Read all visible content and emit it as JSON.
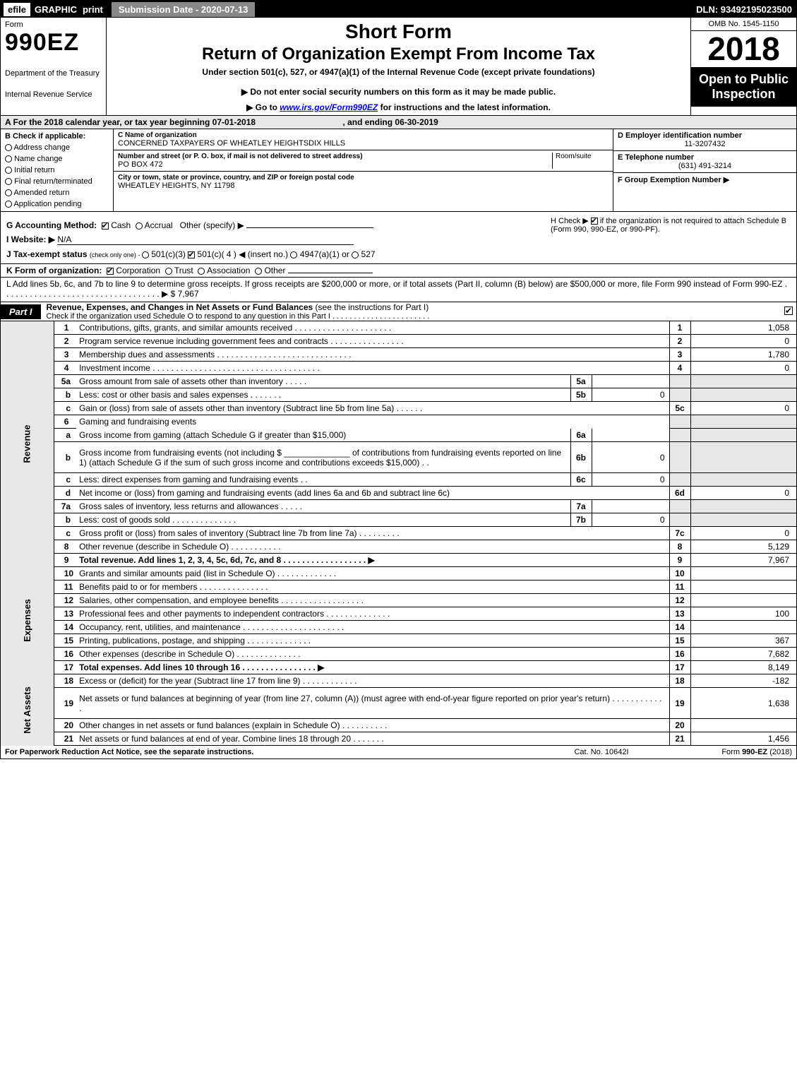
{
  "topbar": {
    "efile": "efile",
    "graphic": "GRAPHIC",
    "print": "print",
    "submission_label": "Submission Date - 2020-07-13",
    "dln": "DLN: 93492195023500"
  },
  "header": {
    "form_label": "Form",
    "form_code": "990EZ",
    "dept": "Department of the Treasury",
    "irs": "Internal Revenue Service",
    "short": "Short Form",
    "ret_title": "Return of Organization Exempt From Income Tax",
    "undersec": "Under section 501(c), 527, or 4947(a)(1) of the Internal Revenue Code (except private foundations)",
    "note": "▶ Do not enter social security numbers on this form as it may be made public.",
    "goto_prefix": "▶ Go to ",
    "goto_link": "www.irs.gov/Form990EZ",
    "goto_suffix": " for instructions and the latest information.",
    "omb": "OMB No. 1545-1150",
    "year": "2018",
    "open": "Open to Public Inspection"
  },
  "period": {
    "text_a": "A  For the 2018 calendar year, or tax year beginning ",
    "begin": "07-01-2018",
    "mid": " , and ending ",
    "end": "06-30-2019"
  },
  "sectionB": {
    "hdr": "B  Check if applicable:",
    "items": [
      "Address change",
      "Name change",
      "Initial return",
      "Final return/terminated",
      "Amended return",
      "Application pending"
    ]
  },
  "sectionC": {
    "name_label": "C Name of organization",
    "name": "CONCERNED TAXPAYERS OF WHEATLEY HEIGHTSDIX HILLS",
    "addr_label": "Number and street (or P. O. box, if mail is not delivered to street address)",
    "room_label": "Room/suite",
    "addr": "PO BOX 472",
    "city_label": "City or town, state or province, country, and ZIP or foreign postal code",
    "city": "WHEATLEY HEIGHTS, NY  11798"
  },
  "sectionD": {
    "d_label": "D Employer identification number",
    "d_val": "11-3207432",
    "e_label": "E Telephone number",
    "e_val": "(631) 491-3214",
    "f_label": "F Group Exemption Number ▶"
  },
  "mid": {
    "G": "G Accounting Method:",
    "G_cash": "Cash",
    "G_accrual": "Accrual",
    "G_other": "Other (specify) ▶",
    "H_prefix": "H  Check ▶ ",
    "H_text": " if the organization is not required to attach Schedule B (Form 990, 990-EZ, or 990-PF).",
    "I": "I Website: ▶",
    "I_val": "N/A",
    "J_prefix": "J Tax-exempt status ",
    "J_small": "(check only one) - ",
    "J_a": " 501(c)(3) ",
    "J_b": " 501(c)( 4 ) ◀ (insert no.) ",
    "J_c": " 4947(a)(1) or ",
    "J_d": " 527",
    "K": "K Form of organization: ",
    "K_corp": "Corporation",
    "K_trust": "Trust",
    "K_assoc": "Association",
    "K_other": "Other",
    "L_text": "L Add lines 5b, 6c, and 7b to line 9 to determine gross receipts. If gross receipts are $200,000 or more, or if total assets (Part II, column (B) below) are $500,000 or more, file Form 990 instead of Form 990-EZ . . . . . . . . . . . . . . . . . . . . . . . . . . . . . . . . . . ▶ $ ",
    "L_val": "7,967"
  },
  "part1": {
    "tab": "Part I",
    "title": "Revenue, Expenses, and Changes in Net Assets or Fund Balances",
    "title_paren": " (see the instructions for Part I)",
    "sub": "Check if the organization used Schedule O to respond to any question in this Part I . . . . . . . . . . . . . . . . . . . . . . .",
    "checked": true
  },
  "sideLabels": {
    "revenue": "Revenue",
    "expenses": "Expenses",
    "netassets": "Net Assets"
  },
  "lines": [
    {
      "sec": "rev",
      "n": "1",
      "desc": "Contributions, gifts, grants, and similar amounts received . . . . . . . . . . . . . . . . . . . . .",
      "col": "1",
      "val": "1,058"
    },
    {
      "sec": "rev",
      "n": "2",
      "desc": "Program service revenue including government fees and contracts . . . . . . . . . . . . . . . .",
      "col": "2",
      "val": "0"
    },
    {
      "sec": "rev",
      "n": "3",
      "desc": "Membership dues and assessments . . . . . . . . . . . . . . . . . . . . . . . . . . . . .",
      "col": "3",
      "val": "1,780"
    },
    {
      "sec": "rev",
      "n": "4",
      "desc": "Investment income . . . . . . . . . . . . . . . . . . . . . . . . . . . . . . . . . . . .",
      "col": "4",
      "val": "0"
    },
    {
      "sec": "rev",
      "n": "5a",
      "desc": "Gross amount from sale of assets other than inventory . . . . .",
      "ibox": "5a",
      "ival": "",
      "shade": true
    },
    {
      "sec": "rev",
      "n": "b",
      "desc": "Less: cost or other basis and sales expenses . . . . . . .",
      "ibox": "5b",
      "ival": "0",
      "shade": true
    },
    {
      "sec": "rev",
      "n": "c",
      "desc": "Gain or (loss) from sale of assets other than inventory (Subtract line 5b from line 5a) . . . . . .",
      "col": "5c",
      "val": "0"
    },
    {
      "sec": "rev",
      "n": "6",
      "desc": "Gaming and fundraising events",
      "shade": true,
      "noborder": true
    },
    {
      "sec": "rev",
      "n": "a",
      "desc": "Gross income from gaming (attach Schedule G if greater than $15,000)",
      "ibox": "6a",
      "ival": "",
      "shade": true
    },
    {
      "sec": "rev",
      "n": "b",
      "desc": "Gross income from fundraising events (not including $ ______________ of contributions from fundraising events reported on line 1) (attach Schedule G if the sum of such gross income and contributions exceeds $15,000)   . .",
      "ibox": "6b",
      "ival": "0",
      "shade": true,
      "tall": true
    },
    {
      "sec": "rev",
      "n": "c",
      "desc": "Less: direct expenses from gaming and fundraising events    . .",
      "ibox": "6c",
      "ival": "0",
      "shade": true
    },
    {
      "sec": "rev",
      "n": "d",
      "desc": "Net income or (loss) from gaming and fundraising events (add lines 6a and 6b and subtract line 6c)",
      "col": "6d",
      "val": "0"
    },
    {
      "sec": "rev",
      "n": "7a",
      "desc": "Gross sales of inventory, less returns and allowances . . . . .",
      "ibox": "7a",
      "ival": "",
      "shade": true
    },
    {
      "sec": "rev",
      "n": "b",
      "desc": "Less: cost of goods sold     . . . . . . . . . . . . . .",
      "ibox": "7b",
      "ival": "0",
      "shade": true
    },
    {
      "sec": "rev",
      "n": "c",
      "desc": "Gross profit or (loss) from sales of inventory (Subtract line 7b from line 7a) . . . . . . . . .",
      "col": "7c",
      "val": "0"
    },
    {
      "sec": "rev",
      "n": "8",
      "desc": "Other revenue (describe in Schedule O)               . . . . . . . . . . .",
      "col": "8",
      "val": "5,129"
    },
    {
      "sec": "rev",
      "n": "9",
      "desc": "Total revenue. Add lines 1, 2, 3, 4, 5c, 6d, 7c, and 8 . . . . . . . . . . . . . . . . . . ▶",
      "col": "9",
      "val": "7,967",
      "bold": true
    },
    {
      "sec": "exp",
      "n": "10",
      "desc": "Grants and similar amounts paid (list in Schedule O)       . . . . . . . . . . . . .",
      "col": "10",
      "val": ""
    },
    {
      "sec": "exp",
      "n": "11",
      "desc": "Benefits paid to or for members             . . . . . . . . . . . . . . .",
      "col": "11",
      "val": ""
    },
    {
      "sec": "exp",
      "n": "12",
      "desc": "Salaries, other compensation, and employee benefits . . . . . . . . . . . . . . . . . .",
      "col": "12",
      "val": ""
    },
    {
      "sec": "exp",
      "n": "13",
      "desc": "Professional fees and other payments to independent contractors . . . . . . . . . . . . . .",
      "col": "13",
      "val": "100"
    },
    {
      "sec": "exp",
      "n": "14",
      "desc": "Occupancy, rent, utilities, and maintenance . . . . . . . . . . . . . . . . . . . . . .",
      "col": "14",
      "val": ""
    },
    {
      "sec": "exp",
      "n": "15",
      "desc": "Printing, publications, postage, and shipping        . . . . . . . . . . . . . .",
      "col": "15",
      "val": "367"
    },
    {
      "sec": "exp",
      "n": "16",
      "desc": "Other expenses (describe in Schedule O)          . . . . . . . . . . . . . .",
      "col": "16",
      "val": "7,682"
    },
    {
      "sec": "exp",
      "n": "17",
      "desc": "Total expenses. Add lines 10 through 16      . . . . . . . . . . . . . . . . ▶",
      "col": "17",
      "val": "8,149",
      "bold": true
    },
    {
      "sec": "net",
      "n": "18",
      "desc": "Excess or (deficit) for the year (Subtract line 17 from line 9)     . . . . . . . . . . . .",
      "col": "18",
      "val": "-182"
    },
    {
      "sec": "net",
      "n": "19",
      "desc": "Net assets or fund balances at beginning of year (from line 27, column (A)) (must agree with end-of-year figure reported on prior year's return)        . . . . . . . . . . . .",
      "col": "19",
      "val": "1,638",
      "tall": true
    },
    {
      "sec": "net",
      "n": "20",
      "desc": "Other changes in net assets or fund balances (explain in Schedule O)   . . . . . . . . . .",
      "col": "20",
      "val": ""
    },
    {
      "sec": "net",
      "n": "21",
      "desc": "Net assets or fund balances at end of year. Combine lines 18 through 20     . . . . . . .",
      "col": "21",
      "val": "1,456"
    }
  ],
  "footer": {
    "left": "For Paperwork Reduction Act Notice, see the separate instructions.",
    "center": "Cat. No. 10642I",
    "right_prefix": "Form ",
    "right_form": "990-EZ",
    "right_suffix": " (2018)"
  },
  "colors": {
    "black": "#000000",
    "shade": "#e8e8e8",
    "midgray": "#888888"
  }
}
